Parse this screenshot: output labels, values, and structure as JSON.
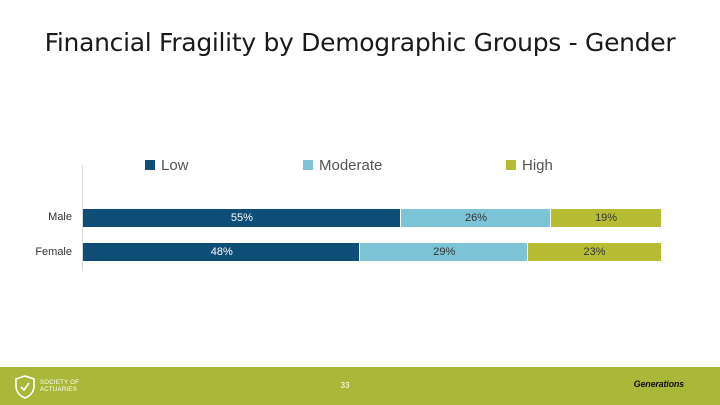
{
  "chart_data": {
    "type": "bar",
    "orientation": "horizontal",
    "stacked": true,
    "normalized_percent": true,
    "title": "Financial Fragility by Demographic Groups - Gender",
    "categories": [
      "Male",
      "Female"
    ],
    "series": [
      {
        "name": "Low",
        "values": [
          55,
          48
        ],
        "labels": [
          "55%",
          "48%"
        ],
        "color": "#0e4d75",
        "label_color": "#ffffff"
      },
      {
        "name": "Moderate",
        "values": [
          26,
          29
        ],
        "labels": [
          "26%",
          "29%"
        ],
        "color": "#7cc3d6",
        "label_color": "#333333"
      },
      {
        "name": "High",
        "values": [
          19,
          23
        ],
        "labels": [
          "19%",
          "23%"
        ],
        "color": "#b6bd33",
        "label_color": "#333333"
      }
    ],
    "xlim": [
      0,
      100
    ],
    "legend": "top"
  },
  "footer": {
    "logo_line1": "SOCIETY OF",
    "logo_line2": "ACTUARIES",
    "page_number": "33",
    "brand": "Generations",
    "color": "#aab83a"
  }
}
